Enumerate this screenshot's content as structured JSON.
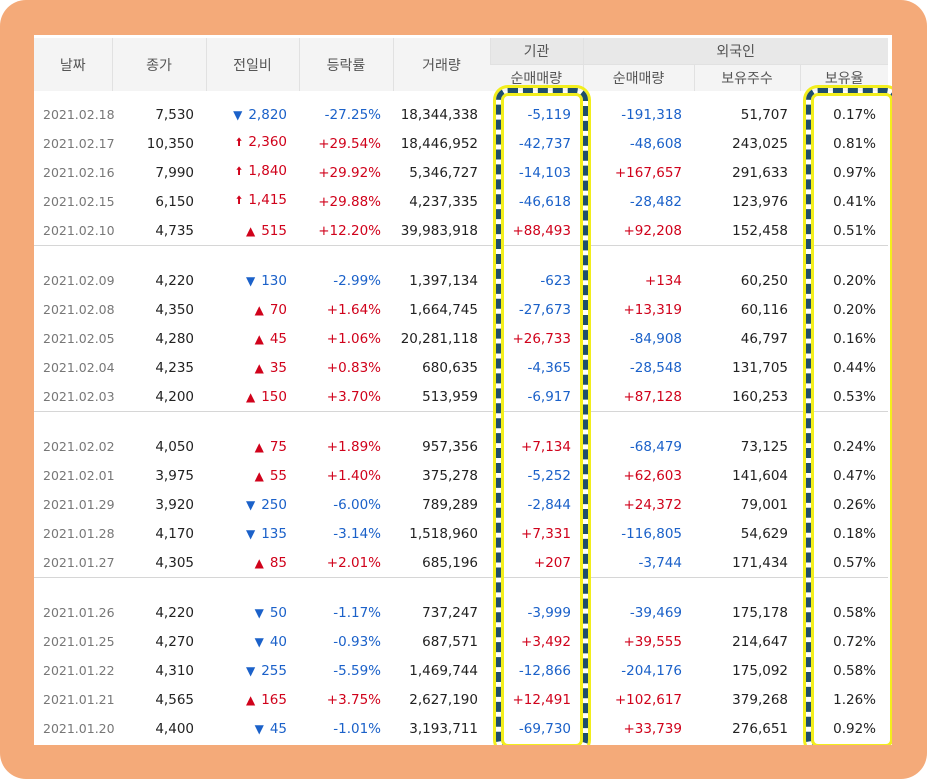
{
  "header": {
    "date": "날짜",
    "close": "종가",
    "change": "전일비",
    "rate": "등락률",
    "volume": "거래량",
    "institution": "기관",
    "foreign": "외국인",
    "inst_net": "순매매량",
    "for_net": "순매매량",
    "for_holdings": "보유주수",
    "for_ratio": "보유율"
  },
  "colors": {
    "up": "#d0021b",
    "down": "#1b61c9",
    "highlight_border": "#1f4e6b",
    "highlight_glow": "#f2ee1c",
    "frame": "#f4aa79"
  },
  "icons": {
    "upper_limit": "heavy-up-arrow",
    "up": "red-triangle-up",
    "down": "blue-triangle-down"
  },
  "groups": [
    [
      {
        "date": "2021.02.18",
        "close": "7,530",
        "dir": "down",
        "arrow": "▼",
        "change": "2,820",
        "rate": "-27.25%",
        "volume": "18,344,338",
        "inst": "-5,119",
        "foreign": "-191,318",
        "holdings": "51,707",
        "ratio": "0.17%"
      },
      {
        "date": "2021.02.17",
        "close": "10,350",
        "dir": "up",
        "arrow": "🠩",
        "change": "2,360",
        "rate": "+29.54%",
        "volume": "18,446,952",
        "inst": "-42,737",
        "foreign": "-48,608",
        "holdings": "243,025",
        "ratio": "0.81%"
      },
      {
        "date": "2021.02.16",
        "close": "7,990",
        "dir": "up",
        "arrow": "🠩",
        "change": "1,840",
        "rate": "+29.92%",
        "volume": "5,346,727",
        "inst": "-14,103",
        "foreign": "+167,657",
        "holdings": "291,633",
        "ratio": "0.97%"
      },
      {
        "date": "2021.02.15",
        "close": "6,150",
        "dir": "up",
        "arrow": "🠩",
        "change": "1,415",
        "rate": "+29.88%",
        "volume": "4,237,335",
        "inst": "-46,618",
        "foreign": "-28,482",
        "holdings": "123,976",
        "ratio": "0.41%"
      },
      {
        "date": "2021.02.10",
        "close": "4,735",
        "dir": "up",
        "arrow": "▲",
        "change": "515",
        "rate": "+12.20%",
        "volume": "39,983,918",
        "inst": "+88,493",
        "foreign": "+92,208",
        "holdings": "152,458",
        "ratio": "0.51%"
      }
    ],
    [
      {
        "date": "2021.02.09",
        "close": "4,220",
        "dir": "down",
        "arrow": "▼",
        "change": "130",
        "rate": "-2.99%",
        "volume": "1,397,134",
        "inst": "-623",
        "foreign": "+134",
        "holdings": "60,250",
        "ratio": "0.20%"
      },
      {
        "date": "2021.02.08",
        "close": "4,350",
        "dir": "up",
        "arrow": "▲",
        "change": "70",
        "rate": "+1.64%",
        "volume": "1,664,745",
        "inst": "-27,673",
        "foreign": "+13,319",
        "holdings": "60,116",
        "ratio": "0.20%"
      },
      {
        "date": "2021.02.05",
        "close": "4,280",
        "dir": "up",
        "arrow": "▲",
        "change": "45",
        "rate": "+1.06%",
        "volume": "20,281,118",
        "inst": "+26,733",
        "foreign": "-84,908",
        "holdings": "46,797",
        "ratio": "0.16%"
      },
      {
        "date": "2021.02.04",
        "close": "4,235",
        "dir": "up",
        "arrow": "▲",
        "change": "35",
        "rate": "+0.83%",
        "volume": "680,635",
        "inst": "-4,365",
        "foreign": "-28,548",
        "holdings": "131,705",
        "ratio": "0.44%"
      },
      {
        "date": "2021.02.03",
        "close": "4,200",
        "dir": "up",
        "arrow": "▲",
        "change": "150",
        "rate": "+3.70%",
        "volume": "513,959",
        "inst": "-6,917",
        "foreign": "+87,128",
        "holdings": "160,253",
        "ratio": "0.53%"
      }
    ],
    [
      {
        "date": "2021.02.02",
        "close": "4,050",
        "dir": "up",
        "arrow": "▲",
        "change": "75",
        "rate": "+1.89%",
        "volume": "957,356",
        "inst": "+7,134",
        "foreign": "-68,479",
        "holdings": "73,125",
        "ratio": "0.24%"
      },
      {
        "date": "2021.02.01",
        "close": "3,975",
        "dir": "up",
        "arrow": "▲",
        "change": "55",
        "rate": "+1.40%",
        "volume": "375,278",
        "inst": "-5,252",
        "foreign": "+62,603",
        "holdings": "141,604",
        "ratio": "0.47%"
      },
      {
        "date": "2021.01.29",
        "close": "3,920",
        "dir": "down",
        "arrow": "▼",
        "change": "250",
        "rate": "-6.00%",
        "volume": "789,289",
        "inst": "-2,844",
        "foreign": "+24,372",
        "holdings": "79,001",
        "ratio": "0.26%"
      },
      {
        "date": "2021.01.28",
        "close": "4,170",
        "dir": "down",
        "arrow": "▼",
        "change": "135",
        "rate": "-3.14%",
        "volume": "1,518,960",
        "inst": "+7,331",
        "foreign": "-116,805",
        "holdings": "54,629",
        "ratio": "0.18%"
      },
      {
        "date": "2021.01.27",
        "close": "4,305",
        "dir": "up",
        "arrow": "▲",
        "change": "85",
        "rate": "+2.01%",
        "volume": "685,196",
        "inst": "+207",
        "foreign": "-3,744",
        "holdings": "171,434",
        "ratio": "0.57%"
      }
    ],
    [
      {
        "date": "2021.01.26",
        "close": "4,220",
        "dir": "down",
        "arrow": "▼",
        "change": "50",
        "rate": "-1.17%",
        "volume": "737,247",
        "inst": "-3,999",
        "foreign": "-39,469",
        "holdings": "175,178",
        "ratio": "0.58%"
      },
      {
        "date": "2021.01.25",
        "close": "4,270",
        "dir": "down",
        "arrow": "▼",
        "change": "40",
        "rate": "-0.93%",
        "volume": "687,571",
        "inst": "+3,492",
        "foreign": "+39,555",
        "holdings": "214,647",
        "ratio": "0.72%"
      },
      {
        "date": "2021.01.22",
        "close": "4,310",
        "dir": "down",
        "arrow": "▼",
        "change": "255",
        "rate": "-5.59%",
        "volume": "1,469,744",
        "inst": "-12,866",
        "foreign": "-204,176",
        "holdings": "175,092",
        "ratio": "0.58%"
      },
      {
        "date": "2021.01.21",
        "close": "4,565",
        "dir": "up",
        "arrow": "▲",
        "change": "165",
        "rate": "+3.75%",
        "volume": "2,627,190",
        "inst": "+12,491",
        "foreign": "+102,617",
        "holdings": "379,268",
        "ratio": "1.26%"
      },
      {
        "date": "2021.01.20",
        "close": "4,400",
        "dir": "down",
        "arrow": "▼",
        "change": "45",
        "rate": "-1.01%",
        "volume": "3,193,711",
        "inst": "-69,730",
        "foreign": "+33,739",
        "holdings": "276,651",
        "ratio": "0.92%"
      }
    ]
  ]
}
